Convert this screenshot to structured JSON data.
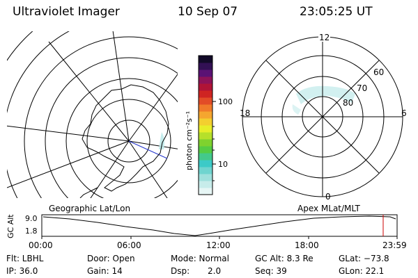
{
  "header": {
    "instrument": "Ultraviolet Imager",
    "date": "10 Sep 07",
    "time": "23:05:25 UT"
  },
  "left_map": {
    "label": "Geographic Lat/Lon"
  },
  "right_map": {
    "label": "Apex MLat/MLT",
    "mlt_labels": {
      "top": "12",
      "left": "18",
      "right": "6",
      "bottom": "0"
    },
    "lat_labels": [
      "60",
      "70",
      "80"
    ]
  },
  "colorbar": {
    "unit_label": "photon cm⁻²s⁻¹",
    "tick_labels": [
      "100",
      "10"
    ],
    "colors": [
      "#e7f6f5",
      "#c7ecea",
      "#9fe0dc",
      "#6fd4cf",
      "#3ccac7",
      "#43c98b",
      "#55cc44",
      "#7fd22e",
      "#b6e02a",
      "#e7ee29",
      "#f3cf2f",
      "#f5a62f",
      "#f07a2a",
      "#e24c27",
      "#cf2422",
      "#b01436",
      "#8d1358",
      "#5a1274",
      "#321054",
      "#120a28"
    ],
    "border_color": "#000000"
  },
  "timeline": {
    "axis_label": "GC Alt",
    "y_ticks": [
      "9.0",
      "1.8"
    ],
    "x_ticks": [
      "00:00",
      "06:00",
      "12:00",
      "18:00",
      "23:59"
    ],
    "current_marker_color": "#cc0000"
  },
  "info": {
    "row1": {
      "filter": "Flt: LBHL",
      "door": "Door: Open",
      "mode": "Mode: Normal",
      "gcalt": "GC Alt: 8.3 Re",
      "glat": "GLat: −73.8"
    },
    "row2": {
      "ip": "IP: 36.0",
      "gain": "Gain: 14",
      "dsp_label": "Dsp:",
      "dsp_value": "2.0",
      "seq": "Seq: 39",
      "glon": "GLon: 22.1"
    }
  }
}
